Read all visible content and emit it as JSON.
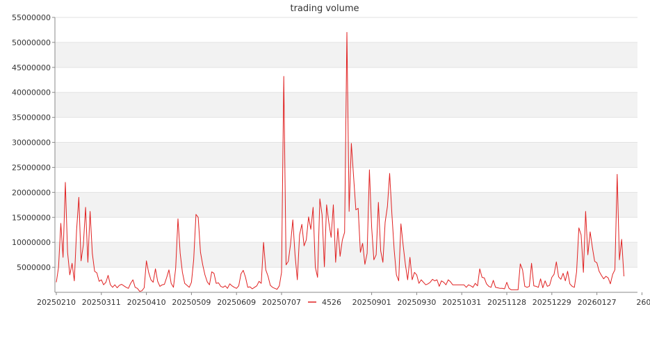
{
  "chart_data": {
    "type": "line",
    "title": "trading volume",
    "xlabel": "",
    "ylabel": "",
    "ylim": [
      0,
      55000000
    ],
    "y_ticks": [
      5000000,
      10000000,
      15000000,
      20000000,
      25000000,
      30000000,
      35000000,
      40000000,
      45000000,
      50000000,
      55000000
    ],
    "y_tick_labels": [
      "5000000",
      "10000000",
      "15000000",
      "20000000",
      "25000000",
      "30000000",
      "35000000",
      "40000000",
      "45000000",
      "50000000",
      "55000000"
    ],
    "x_tick_labels": [
      "20250210",
      "20250311",
      "20250410",
      "20250509",
      "20250609",
      "20250707",
      "20250901",
      "20250930",
      "20251031",
      "20251128",
      "20251229",
      "20260127",
      "260"
    ],
    "x_tick_index": [
      0,
      20,
      40,
      60,
      80,
      100,
      140,
      160,
      180,
      200,
      220,
      240,
      260
    ],
    "grid": "horizontal bands",
    "colors": {
      "line": "#e02020",
      "band": "#f2f2f2",
      "gridline": "#e2e2e2",
      "axis": "#888888"
    },
    "series": [
      {
        "name": "4526",
        "values": [
          2000000,
          5000000,
          13800000,
          7000000,
          22000000,
          8000000,
          3500000,
          5800000,
          2300000,
          12500000,
          19000000,
          6300000,
          9500000,
          17000000,
          6000000,
          16200000,
          7800000,
          4200000,
          3900000,
          2200000,
          2500000,
          1500000,
          2000000,
          3400000,
          1500000,
          1000000,
          1500000,
          900000,
          1400000,
          1600000,
          1300000,
          1000000,
          800000,
          1800000,
          2500000,
          1000000,
          800000,
          200000,
          300000,
          900000,
          6300000,
          4000000,
          2500000,
          2000000,
          4700000,
          2200000,
          1200000,
          1500000,
          1600000,
          3000000,
          4500000,
          1800000,
          1000000,
          4800000,
          14700000,
          7800000,
          4000000,
          1800000,
          1400000,
          1000000,
          2000000,
          6500000,
          15600000,
          15000000,
          8000000,
          5500000,
          3500000,
          2100000,
          1500000,
          4100000,
          3800000,
          1800000,
          1900000,
          1200000,
          1000000,
          1300000,
          800000,
          1700000,
          1300000,
          1000000,
          800000,
          1300000,
          3700000,
          4400000,
          3000000,
          1000000,
          1100000,
          700000,
          1000000,
          1300000,
          2200000,
          1800000,
          10000000,
          4500000,
          3200000,
          1400000,
          1000000,
          800000,
          600000,
          1300000,
          4000000,
          43200000,
          5500000,
          6200000,
          9700000,
          14500000,
          7500000,
          2500000,
          11500000,
          13600000,
          9300000,
          10500000,
          15100000,
          12600000,
          17000000,
          5000000,
          3000000,
          18700000,
          15500000,
          5100000,
          17500000,
          14000000,
          11000000,
          17500000,
          6000000,
          12800000,
          7200000,
          10500000,
          12000000,
          52000000,
          16200000,
          29800000,
          23000000,
          16500000,
          16800000,
          8000000,
          9800000,
          5600000,
          7800000,
          24500000,
          13000000,
          6500000,
          7500000,
          18000000,
          8300000,
          6000000,
          14000000,
          17200000,
          23800000,
          15500000,
          8500000,
          3500000,
          2300000,
          13700000,
          9300000,
          5500000,
          2500000,
          7000000,
          2500000,
          4000000,
          3500000,
          1800000,
          2500000,
          2000000,
          1500000,
          1700000,
          2000000,
          2600000,
          2300000,
          2500000,
          1200000,
          2300000,
          2000000,
          1500000,
          2500000,
          2100000,
          1500000,
          1500000,
          1500000,
          1500000,
          1500000,
          1500000,
          1000000,
          1500000,
          1300000,
          1000000,
          1800000,
          1300000,
          4700000,
          3000000,
          2900000,
          1700000,
          1200000,
          1000000,
          2400000,
          1000000,
          900000,
          800000,
          800000,
          700000,
          2000000,
          800000,
          500000,
          500000,
          500000,
          500000,
          5700000,
          4500000,
          1200000,
          1000000,
          1200000,
          5800000,
          1300000,
          1200000,
          1000000,
          2700000,
          900000,
          2300000,
          1200000,
          1400000,
          3000000,
          3600000,
          6100000,
          3100000,
          2600000,
          3800000,
          2300000,
          4200000,
          1700000,
          1200000,
          1000000,
          4100000,
          12900000,
          11500000,
          4000000,
          16200000,
          7500000,
          12100000,
          9000000,
          6200000,
          5900000,
          4200000,
          3400000,
          2700000,
          3200000,
          2900000,
          1700000,
          3600000,
          4500000,
          23600000,
          6500000,
          10600000,
          3200000
        ]
      }
    ]
  }
}
